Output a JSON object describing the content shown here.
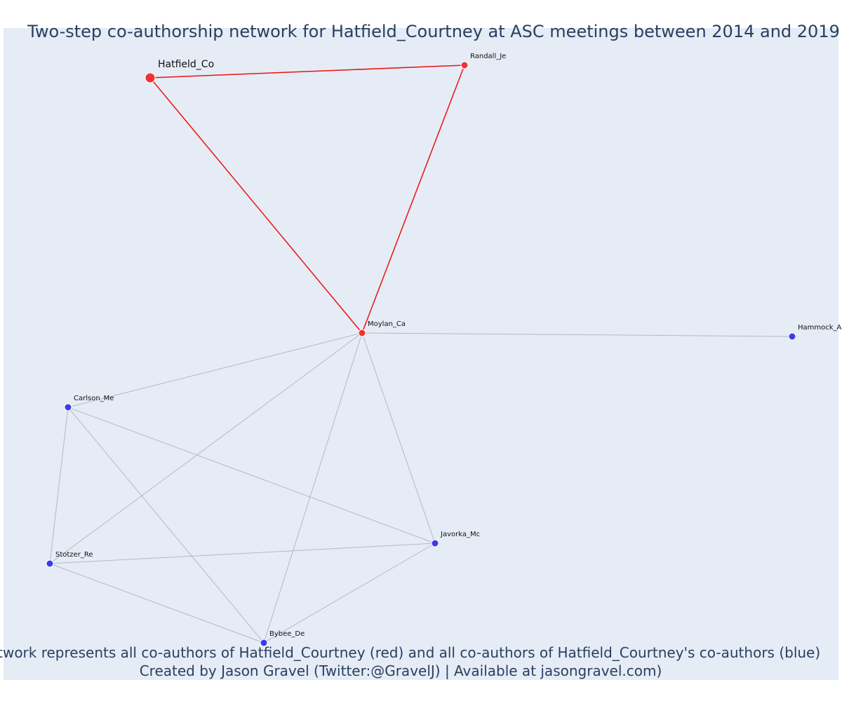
{
  "title": "Two-step co-authorship network for Hatfield_Courtney at ASC meetings between 2014 and 2019",
  "footer": {
    "line1": "Network represents all co-authors of Hatfield_Courtney (red) and all co-authors of Hatfield_Courtney's co-authors (blue)",
    "line2": "Created by Jason Gravel (Twitter:@GravelJ) | Available at jasongravel.com)"
  },
  "colors": {
    "background": "#e5ecf6",
    "red_node": "#ee3333",
    "blue_node": "#3b3bea",
    "red_edge": "#ee1111",
    "grey_edge": "#b4b8c8",
    "text": "#2a3f5f"
  },
  "nodes": [
    {
      "id": "Hatfield_Co",
      "label": "Hatfield_Co",
      "group": "focal"
    },
    {
      "id": "Randall_Je",
      "label": "Randall_Je",
      "group": "red"
    },
    {
      "id": "Moylan_Ca",
      "label": "Moylan_Ca",
      "group": "red"
    },
    {
      "id": "Hammock_A",
      "label": "Hammock_A",
      "group": "blue"
    },
    {
      "id": "Carlson_Me",
      "label": "Carlson_Me",
      "group": "blue"
    },
    {
      "id": "Javorka_Mc",
      "label": "Javorka_Mc",
      "group": "blue"
    },
    {
      "id": "Stotzer_Re",
      "label": "Stotzer_Re",
      "group": "blue"
    },
    {
      "id": "Bybee_De",
      "label": "Bybee_De",
      "group": "blue"
    }
  ],
  "edges": [
    {
      "source": "Hatfield_Co",
      "target": "Randall_Je",
      "type": "red"
    },
    {
      "source": "Hatfield_Co",
      "target": "Moylan_Ca",
      "type": "red"
    },
    {
      "source": "Randall_Je",
      "target": "Moylan_Ca",
      "type": "red"
    },
    {
      "source": "Moylan_Ca",
      "target": "Hammock_A",
      "type": "grey"
    },
    {
      "source": "Moylan_Ca",
      "target": "Carlson_Me",
      "type": "grey"
    },
    {
      "source": "Moylan_Ca",
      "target": "Stotzer_Re",
      "type": "grey"
    },
    {
      "source": "Moylan_Ca",
      "target": "Bybee_De",
      "type": "grey"
    },
    {
      "source": "Moylan_Ca",
      "target": "Javorka_Mc",
      "type": "grey"
    },
    {
      "source": "Carlson_Me",
      "target": "Stotzer_Re",
      "type": "grey"
    },
    {
      "source": "Carlson_Me",
      "target": "Bybee_De",
      "type": "grey"
    },
    {
      "source": "Carlson_Me",
      "target": "Javorka_Mc",
      "type": "grey"
    },
    {
      "source": "Stotzer_Re",
      "target": "Javorka_Mc",
      "type": "grey"
    },
    {
      "source": "Stotzer_Re",
      "target": "Bybee_De",
      "type": "grey"
    },
    {
      "source": "Bybee_De",
      "target": "Javorka_Mc",
      "type": "grey"
    }
  ]
}
